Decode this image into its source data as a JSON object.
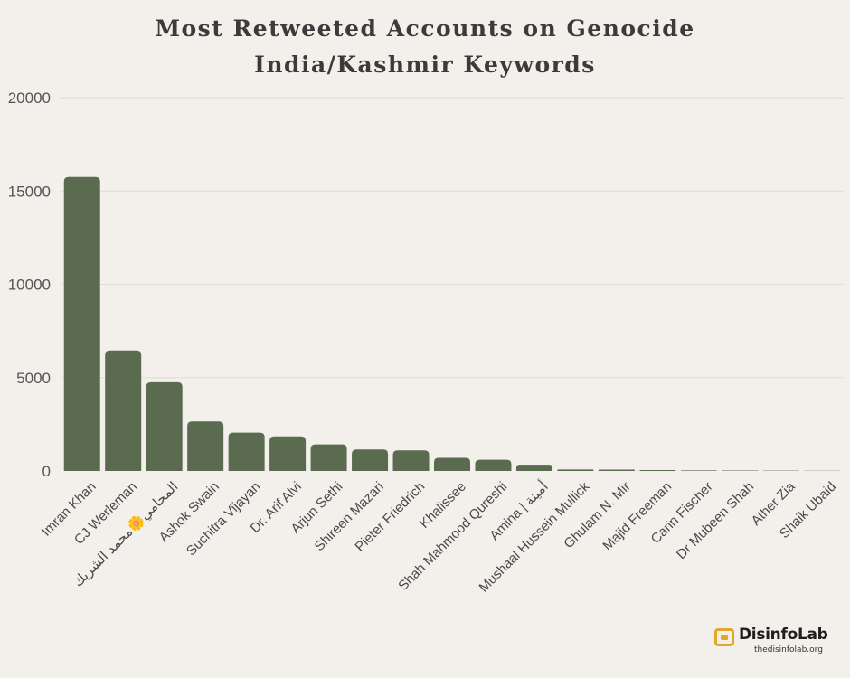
{
  "chart_data": {
    "type": "bar",
    "title": [
      "Most Retweeted Accounts on Genocide",
      "India/Kashmir Keywords"
    ],
    "xlabel": "",
    "ylabel": "",
    "ylim": [
      0,
      20000
    ],
    "yticks": [
      0,
      5000,
      10000,
      15000,
      20000
    ],
    "grid": true,
    "bar_color": "#5a6b4f",
    "categories": [
      "Imran Khan",
      "CJ Werleman",
      "المحامي🌼محمد الشريك",
      "Ashok Swain",
      "Suchitra Vijayan",
      "Dr. Arif Alvi",
      "Arjun Sethi",
      "Shireen Mazari",
      "Pieter Friedrich",
      "Khalissee",
      "Shah Mahmood Qureshi",
      "Amina | أمينة",
      "Mushaal Hussein Mullick",
      "Ghulam N. Mir",
      "Majid Freeman",
      "Carin Fischer",
      "Dr Mubeen Shah",
      "Ather Zia",
      "Shaik Ubaid"
    ],
    "values": [
      15750,
      6450,
      4750,
      2650,
      2050,
      1850,
      1420,
      1150,
      1100,
      700,
      600,
      330,
      80,
      70,
      50,
      30,
      25,
      20,
      15
    ]
  },
  "logo": {
    "name": "DisinfoLab",
    "url": "thedisinfolab.org"
  }
}
